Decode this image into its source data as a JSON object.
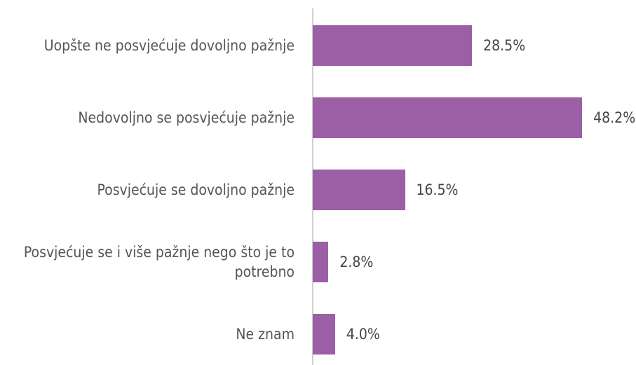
{
  "chart_data": {
    "type": "barh",
    "categories": [
      "Uopšte ne posvjećuje dovoljno pažnje",
      "Nedovoljno se posvjećuje pažnje",
      "Posvjećuje se dovoljno pažnje",
      "Posvjećuje se i više pažnje nego što je to potrebno",
      "Ne znam"
    ],
    "values": [
      28.5,
      48.2,
      16.5,
      2.8,
      4.0
    ],
    "value_labels": [
      "28.5%",
      "48.2%",
      "16.5%",
      "2.8%",
      "4.0%"
    ],
    "color": "#9b5fa5"
  }
}
